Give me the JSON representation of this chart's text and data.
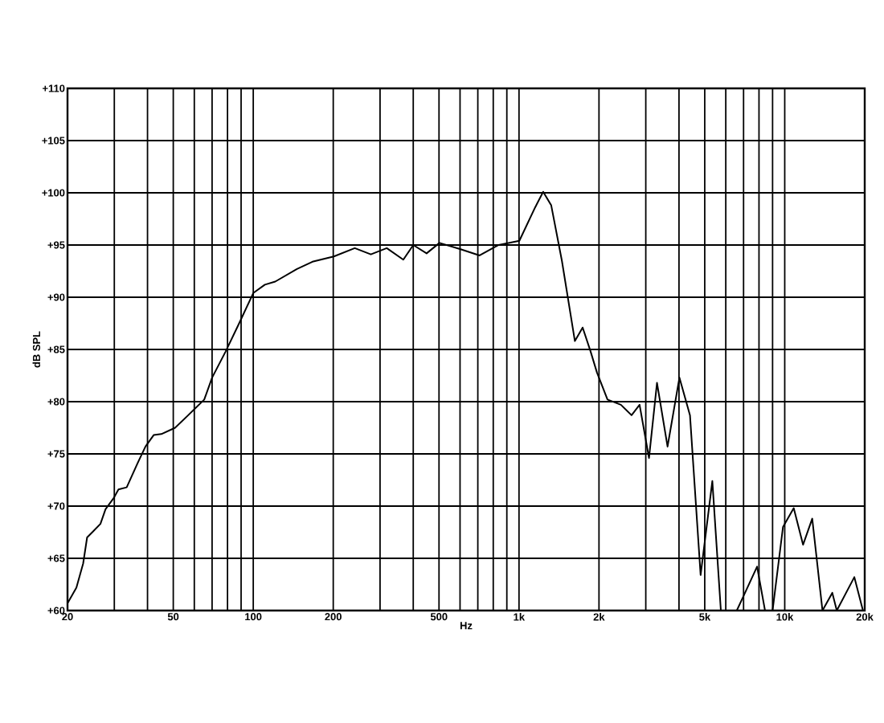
{
  "chart_data": {
    "type": "line",
    "xlabel": "Hz",
    "ylabel": "dB SPL",
    "log": "x",
    "grid": true,
    "xlim": [
      20,
      20000
    ],
    "ylim": [
      60,
      110
    ],
    "xticks": [
      20,
      {
        "value": 30,
        "label": null
      },
      {
        "value": 40,
        "label": null
      },
      50,
      {
        "value": 60,
        "label": null
      },
      {
        "value": 70,
        "label": null
      },
      {
        "value": 80,
        "label": null
      },
      {
        "value": 90,
        "label": null
      },
      100,
      200,
      {
        "value": 300,
        "label": null
      },
      {
        "value": 400,
        "label": null
      },
      500,
      {
        "value": 600,
        "label": null
      },
      {
        "value": 700,
        "label": null
      },
      {
        "value": 800,
        "label": null
      },
      {
        "value": 900,
        "label": null
      },
      {
        "value": 1000,
        "label": "1k"
      },
      {
        "value": 2000,
        "label": "2k"
      },
      {
        "value": 3000,
        "label": null
      },
      {
        "value": 4000,
        "label": null
      },
      {
        "value": 5000,
        "label": "5k"
      },
      {
        "value": 6000,
        "label": null
      },
      {
        "value": 7000,
        "label": null
      },
      {
        "value": 8000,
        "label": null
      },
      {
        "value": 9000,
        "label": null
      },
      {
        "value": 10000,
        "label": "10k"
      },
      {
        "value": 20000,
        "label": "20k"
      }
    ],
    "yticks": [
      {
        "value": 60,
        "label": "+60"
      },
      {
        "value": 65,
        "label": "+65"
      },
      {
        "value": 70,
        "label": "+70"
      },
      {
        "value": 75,
        "label": "+75"
      },
      {
        "value": 80,
        "label": "+80"
      },
      {
        "value": 85,
        "label": "+85"
      },
      {
        "value": 90,
        "label": "+90"
      },
      {
        "value": 95,
        "label": "+95"
      },
      {
        "value": 100,
        "label": "+100"
      },
      {
        "value": 105,
        "label": "+105"
      },
      {
        "value": 110,
        "label": "+110"
      }
    ],
    "series": [
      {
        "color": "#000000",
        "x": [
          20,
          21.6,
          22.9,
          23.7,
          24.8,
          26.6,
          27.8,
          29.9,
          31.1,
          33.4,
          36.7,
          39.3,
          42.2,
          45.1,
          50.8,
          56.9,
          65.4,
          70,
          78.7,
          88.1,
          100,
          110.6,
          121,
          146,
          167,
          201,
          241,
          277,
          318,
          367,
          400,
          449,
          502,
          603,
          711,
          838,
          1003,
          1150,
          1233,
          1322,
          1450,
          1623,
          1736,
          1860,
          1965,
          2153,
          2418,
          2652,
          2843,
          3085,
          3306,
          3623,
          4015,
          4400,
          4824,
          5340,
          5750,
          6600,
          7000,
          7870,
          8430,
          9000,
          9850,
          10810,
          11720,
          12690,
          13870,
          15100,
          15700,
          18280,
          19700
        ],
        "values": [
          60.7,
          62.2,
          64.5,
          67.0,
          67.5,
          68.3,
          69.7,
          70.8,
          71.6,
          71.8,
          74.1,
          75.7,
          76.8,
          76.9,
          77.5,
          78.7,
          80.2,
          82.3,
          84.8,
          87.4,
          90.4,
          91.2,
          91.5,
          92.7,
          93.4,
          93.9,
          94.7,
          94.1,
          94.7,
          93.6,
          95.0,
          94.2,
          95.2,
          94.6,
          94.0,
          95.0,
          95.4,
          98.6,
          100.1,
          98.8,
          93.5,
          85.8,
          87.1,
          84.8,
          82.8,
          80.2,
          79.7,
          78.7,
          79.7,
          74.6,
          81.8,
          75.7,
          82.3,
          78.7,
          63.4,
          72.4,
          60,
          60,
          61.4,
          64.2,
          60,
          60,
          68.0,
          69.8,
          66.3,
          68.8,
          60,
          61.7,
          60,
          63.2,
          60
        ]
      }
    ]
  }
}
